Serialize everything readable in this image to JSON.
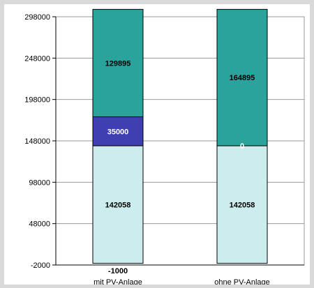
{
  "chart_data": {
    "type": "bar",
    "stacked": true,
    "title": "",
    "xlabel": "",
    "ylabel": "",
    "categories": [
      "mit PV-Anlage",
      "ohne PV-Anlage"
    ],
    "ylim": [
      -2000,
      298000
    ],
    "yticks": [
      -2000,
      48000,
      98000,
      148000,
      198000,
      248000,
      298000
    ],
    "grid": true,
    "legend": "none",
    "series": [
      {
        "values": [
          142058,
          142058
        ],
        "labels": [
          "142058",
          "142058"
        ],
        "color": "#cdecee",
        "label_color": "#000000"
      },
      {
        "values": [
          35000,
          0
        ],
        "labels": [
          "35000",
          "0"
        ],
        "color": "#3f3fb2",
        "label_color": "#ffffff"
      },
      {
        "values": [
          129895,
          164895
        ],
        "labels": [
          "129895",
          "164895"
        ],
        "color": "#2aa39c",
        "label_color": "#000000"
      }
    ],
    "annotations": [
      {
        "category": "mit PV-Anlage",
        "y": -1000,
        "text": "-1000"
      }
    ]
  }
}
